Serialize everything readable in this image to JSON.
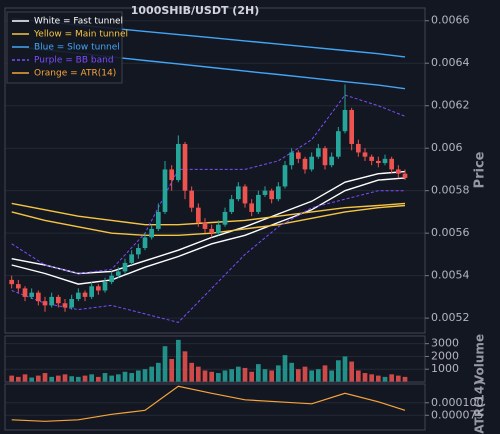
{
  "chart_data": {
    "type": "candlestick",
    "title": "1000SHIB/USDT (2H)",
    "xlim": [
      -1,
      62
    ],
    "candles": [
      [
        0.00538,
        0.0054,
        0.00534,
        0.00536
      ],
      [
        0.00536,
        0.00538,
        0.00532,
        0.00534
      ],
      [
        0.00534,
        0.00535,
        0.00528,
        0.0053
      ],
      [
        0.0053,
        0.00534,
        0.00529,
        0.00532
      ],
      [
        0.00532,
        0.00533,
        0.00526,
        0.00528
      ],
      [
        0.00528,
        0.0053,
        0.00523,
        0.00526
      ],
      [
        0.00526,
        0.00532,
        0.00525,
        0.0053
      ],
      [
        0.0053,
        0.00531,
        0.00525,
        0.00527
      ],
      [
        0.00527,
        0.00529,
        0.00523,
        0.00525
      ],
      [
        0.00525,
        0.00531,
        0.00524,
        0.00529
      ],
      [
        0.00529,
        0.00534,
        0.00528,
        0.00532
      ],
      [
        0.00532,
        0.00533,
        0.00528,
        0.0053
      ],
      [
        0.0053,
        0.00537,
        0.00529,
        0.00535
      ],
      [
        0.00535,
        0.00536,
        0.00531,
        0.00533
      ],
      [
        0.00533,
        0.00539,
        0.00532,
        0.00537
      ],
      [
        0.00537,
        0.00542,
        0.00536,
        0.0054
      ],
      [
        0.0054,
        0.00544,
        0.00539,
        0.00542
      ],
      [
        0.00542,
        0.00548,
        0.00541,
        0.00546
      ],
      [
        0.00546,
        0.00552,
        0.00545,
        0.0055
      ],
      [
        0.0055,
        0.00555,
        0.00548,
        0.00553
      ],
      [
        0.00553,
        0.0056,
        0.00552,
        0.00558
      ],
      [
        0.00558,
        0.00564,
        0.00557,
        0.00562
      ],
      [
        0.00562,
        0.00574,
        0.00561,
        0.0057
      ],
      [
        0.0057,
        0.00594,
        0.00569,
        0.0059
      ],
      [
        0.0059,
        0.00592,
        0.0058,
        0.00585
      ],
      [
        0.00585,
        0.00606,
        0.00584,
        0.00602
      ],
      [
        0.00602,
        0.00603,
        0.00576,
        0.0058
      ],
      [
        0.0058,
        0.00582,
        0.0057,
        0.00572
      ],
      [
        0.00572,
        0.00574,
        0.00563,
        0.00565
      ],
      [
        0.00565,
        0.00567,
        0.0056,
        0.00562
      ],
      [
        0.00562,
        0.00564,
        0.00558,
        0.0056
      ],
      [
        0.0056,
        0.00566,
        0.00559,
        0.00564
      ],
      [
        0.00564,
        0.00572,
        0.00563,
        0.0057
      ],
      [
        0.0057,
        0.00578,
        0.00569,
        0.00576
      ],
      [
        0.00576,
        0.00584,
        0.00575,
        0.00582
      ],
      [
        0.00582,
        0.00583,
        0.00572,
        0.00574
      ],
      [
        0.00574,
        0.00576,
        0.00568,
        0.0057
      ],
      [
        0.0057,
        0.0058,
        0.00569,
        0.00578
      ],
      [
        0.00578,
        0.00582,
        0.00577,
        0.0058
      ],
      [
        0.0058,
        0.00581,
        0.00574,
        0.00576
      ],
      [
        0.00576,
        0.00584,
        0.00575,
        0.00582
      ],
      [
        0.00582,
        0.00594,
        0.00581,
        0.00592
      ],
      [
        0.00592,
        0.006,
        0.0059,
        0.00598
      ],
      [
        0.00598,
        0.00599,
        0.00593,
        0.00595
      ],
      [
        0.00595,
        0.00596,
        0.00588,
        0.0059
      ],
      [
        0.0059,
        0.00598,
        0.00589,
        0.00596
      ],
      [
        0.00596,
        0.00602,
        0.00595,
        0.006
      ],
      [
        0.006,
        0.00601,
        0.0059,
        0.00592
      ],
      [
        0.00592,
        0.00598,
        0.00591,
        0.00596
      ],
      [
        0.00596,
        0.0061,
        0.00595,
        0.00608
      ],
      [
        0.00608,
        0.0063,
        0.00607,
        0.00618
      ],
      [
        0.00618,
        0.00619,
        0.00599,
        0.00602
      ],
      [
        0.00602,
        0.00604,
        0.00596,
        0.00598
      ],
      [
        0.00598,
        0.006,
        0.00594,
        0.00596
      ],
      [
        0.00596,
        0.00597,
        0.00592,
        0.00594
      ],
      [
        0.00594,
        0.00596,
        0.00591,
        0.00593
      ],
      [
        0.00593,
        0.00597,
        0.00592,
        0.00595
      ],
      [
        0.00595,
        0.00596,
        0.00588,
        0.0059
      ],
      [
        0.0059,
        0.00592,
        0.00586,
        0.00588
      ],
      [
        0.00588,
        0.0059,
        0.00585,
        0.00586
      ]
    ],
    "up_color": "#26a69a",
    "down_color": "#ef5350",
    "ylabel": "Price",
    "ylim": [
      0.00513,
      0.00666
    ],
    "yticks": [
      0.0052,
      0.0054,
      0.0056,
      0.0058,
      0.006,
      0.0062,
      0.0064,
      0.0066
    ],
    "grid": true,
    "legend": "upper left",
    "line_x": [
      0,
      5,
      10,
      15,
      20,
      25,
      30,
      35,
      40,
      45,
      50,
      55,
      59
    ],
    "overlays": [
      {
        "name": "White = Fast tunnel",
        "color": "#ffffff",
        "dash": false,
        "upper": [
          0.00548,
          0.00545,
          0.00541,
          0.00542,
          0.00547,
          0.00552,
          0.00558,
          0.00563,
          0.00569,
          0.00575,
          0.00584,
          0.00588,
          0.00589
        ],
        "lower": [
          0.00545,
          0.00541,
          0.00536,
          0.00538,
          0.00544,
          0.00549,
          0.00555,
          0.00559,
          0.00565,
          0.00571,
          0.0058,
          0.00585,
          0.00586
        ]
      },
      {
        "name": "Yellow = Main tunnel",
        "color": "#f5c542",
        "dash": false,
        "upper": [
          0.00574,
          0.00571,
          0.00568,
          0.00566,
          0.00564,
          0.00564,
          0.00565,
          0.00566,
          0.00568,
          0.0057,
          0.00572,
          0.00573,
          0.00574
        ],
        "lower": [
          0.0057,
          0.00566,
          0.00563,
          0.0056,
          0.00559,
          0.00559,
          0.0056,
          0.00562,
          0.00564,
          0.00567,
          0.0057,
          0.00572,
          0.00573
        ]
      },
      {
        "name": "Blue = Slow tunnel",
        "color": "#42a5f5",
        "dash": false,
        "upper": [
          0.00661,
          0.006595,
          0.00658,
          0.006565,
          0.00655,
          0.006535,
          0.00652,
          0.006505,
          0.00649,
          0.006475,
          0.00646,
          0.006445,
          0.00643
        ],
        "lower": [
          0.00648,
          0.006463,
          0.006447,
          0.00643,
          0.006413,
          0.006397,
          0.00638,
          0.006363,
          0.006347,
          0.00633,
          0.006313,
          0.006297,
          0.00628
        ]
      },
      {
        "name": "Purple = BB band",
        "color": "#7c4dff",
        "dash": true,
        "upper": [
          0.00555,
          0.00545,
          0.00541,
          0.00543,
          0.0056,
          0.0059,
          0.0059,
          0.0059,
          0.00594,
          0.00604,
          0.00625,
          0.0062,
          0.00615
        ],
        "lower": [
          0.00533,
          0.00527,
          0.00524,
          0.00526,
          0.00522,
          0.00518,
          0.00534,
          0.0055,
          0.00563,
          0.00572,
          0.00576,
          0.0058,
          0.0058
        ]
      }
    ],
    "volume": {
      "ylabel": "Volume",
      "ylim": [
        0,
        3600
      ],
      "yticks": [
        1000,
        2000,
        3000
      ],
      "values": [
        500,
        400,
        600,
        350,
        500,
        700,
        400,
        500,
        600,
        450,
        400,
        500,
        600,
        400,
        700,
        500,
        600,
        800,
        700,
        900,
        1000,
        1200,
        1500,
        2800,
        1800,
        3300,
        2400,
        1500,
        1200,
        900,
        800,
        700,
        900,
        1000,
        1200,
        1100,
        800,
        1400,
        1000,
        900,
        1300,
        2100,
        1500,
        1000,
        1200,
        900,
        1000,
        1300,
        900,
        1700,
        2000,
        1600,
        900,
        700,
        600,
        500,
        400,
        600,
        500,
        400
      ]
    },
    "atr": {
      "name": "Orange = ATR(14)",
      "ylabel": "ATR(14)",
      "color": "#f7a43b",
      "ylim": [
        4.55e-05,
        0.0001375
      ],
      "yticks": [
        {
          "value": 7.5e-05,
          "label": "0.000075"
        },
        {
          "value": 0.0001,
          "label": "0.000100"
        }
      ],
      "values": [
        6.6e-05,
        6.3e-05,
        6.6e-05,
        7.7e-05,
        8.5e-05,
        0.000133,
        0.000119,
        0.000106,
        0.000102,
        9.8e-05,
        0.000119,
        0.000102,
        8.5e-05
      ]
    }
  }
}
